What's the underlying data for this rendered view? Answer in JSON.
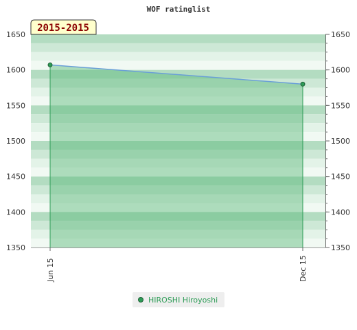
{
  "chart_data": {
    "type": "area",
    "title": "WOF ratinglist",
    "badge": "2015-2015",
    "categories": [
      "Jun 15",
      "Dec 15"
    ],
    "series": [
      {
        "name": "HIROSHI Hiroyoshi",
        "values": [
          1607,
          1580
        ]
      }
    ],
    "ylim": [
      1350,
      1650
    ],
    "y_ticks": [
      1350,
      1400,
      1450,
      1500,
      1550,
      1600,
      1650
    ],
    "y_tick_labels": [
      "1350",
      "1400",
      "1450",
      "1500",
      "1550",
      "1600",
      "1650"
    ],
    "xlabel": "",
    "ylabel": "",
    "grid": true,
    "legend_position": "bottom"
  },
  "colors": {
    "band_dark": "#b3dcc1",
    "band_mid": "#cde8d6",
    "band_light": "#e3f3e8",
    "band_lightest": "#f1f9f3",
    "area_fill": "#5cb87a",
    "line": "#6a9fd8",
    "marker": "#2e9c57",
    "badge_bg": "#ffffcc"
  }
}
